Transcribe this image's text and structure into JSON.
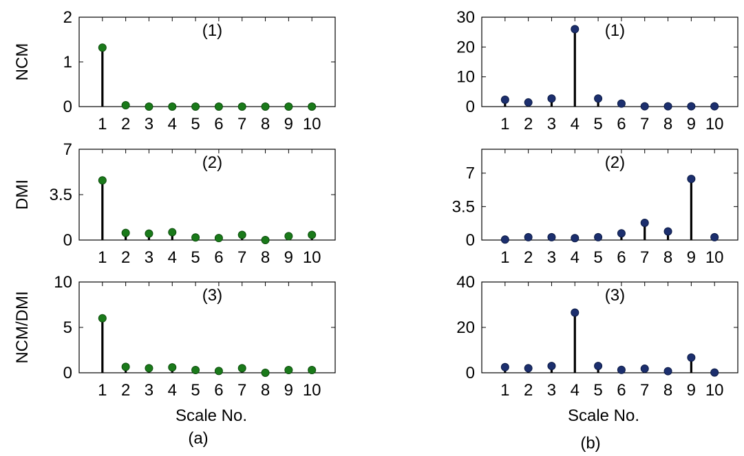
{
  "figure": {
    "columns": [
      {
        "caption": "(a)",
        "xlabel": "Scale No.",
        "marker_color": "#1a7a1a",
        "marker_edge": "#0d4d0d"
      },
      {
        "caption": "(b)",
        "xlabel": "Scale No.",
        "marker_color": "#1c2f6e",
        "marker_edge": "#0b1a45"
      }
    ]
  },
  "chart_data": [
    {
      "type": "stem",
      "title": "(1)",
      "ylabel": "NCM",
      "categories": [
        1,
        2,
        3,
        4,
        5,
        6,
        7,
        8,
        9,
        10
      ],
      "values": [
        1.32,
        0.03,
        0.0,
        0.0,
        0.0,
        0.0,
        0.0,
        0.0,
        0.0,
        0.0
      ],
      "ylim": [
        0,
        2
      ],
      "yticks": [
        "0",
        "1",
        "2"
      ],
      "ytick_values": [
        0,
        1,
        2
      ],
      "xlim": [
        0,
        11
      ]
    },
    {
      "type": "stem",
      "title": "(2)",
      "ylabel": "DMI",
      "categories": [
        1,
        2,
        3,
        4,
        5,
        6,
        7,
        8,
        9,
        10
      ],
      "values": [
        4.6,
        0.55,
        0.5,
        0.6,
        0.2,
        0.15,
        0.4,
        0.0,
        0.3,
        0.4
      ],
      "ylim": [
        0,
        7
      ],
      "yticks": [
        "0",
        "3.5",
        "7"
      ],
      "ytick_values": [
        0,
        3.5,
        7
      ],
      "xlim": [
        0,
        11
      ]
    },
    {
      "type": "stem",
      "title": "(3)",
      "ylabel": "NCM/DMI",
      "categories": [
        1,
        2,
        3,
        4,
        5,
        6,
        7,
        8,
        9,
        10
      ],
      "values": [
        6.0,
        0.65,
        0.5,
        0.6,
        0.3,
        0.2,
        0.5,
        0.0,
        0.3,
        0.3
      ],
      "ylim": [
        0,
        10
      ],
      "yticks": [
        "0",
        "5",
        "10"
      ],
      "ytick_values": [
        0,
        5,
        10
      ],
      "xlim": [
        0,
        11
      ]
    },
    {
      "type": "stem",
      "title": "(1)",
      "ylabel": "",
      "categories": [
        1,
        2,
        3,
        4,
        5,
        6,
        7,
        8,
        9,
        10
      ],
      "values": [
        2.3,
        1.4,
        2.7,
        26.0,
        2.7,
        1.0,
        0.1,
        0.1,
        0.1,
        0.1
      ],
      "ylim": [
        0,
        30
      ],
      "yticks": [
        "0",
        "10",
        "20",
        "30"
      ],
      "ytick_values": [
        0,
        10,
        20,
        30
      ],
      "xlim": [
        0,
        11
      ]
    },
    {
      "type": "stem",
      "title": "(2)",
      "ylabel": "",
      "categories": [
        1,
        2,
        3,
        4,
        5,
        6,
        7,
        8,
        9,
        10
      ],
      "values": [
        0.05,
        0.3,
        0.3,
        0.2,
        0.3,
        0.7,
        1.8,
        0.9,
        6.4,
        0.3
      ],
      "ylim": [
        0,
        9.5
      ],
      "yticks": [
        "0",
        "3.5",
        "7"
      ],
      "ytick_values": [
        0,
        3.5,
        7
      ],
      "xlim": [
        0,
        11
      ]
    },
    {
      "type": "stem",
      "title": "(3)",
      "ylabel": "",
      "categories": [
        1,
        2,
        3,
        4,
        5,
        6,
        7,
        8,
        9,
        10
      ],
      "values": [
        2.5,
        2.0,
        3.0,
        26.5,
        3.0,
        1.3,
        1.8,
        0.7,
        6.7,
        0.1
      ],
      "ylim": [
        0,
        40
      ],
      "yticks": [
        "0",
        "20",
        "40"
      ],
      "ytick_values": [
        0,
        20,
        40
      ],
      "xlim": [
        0,
        11
      ]
    }
  ]
}
